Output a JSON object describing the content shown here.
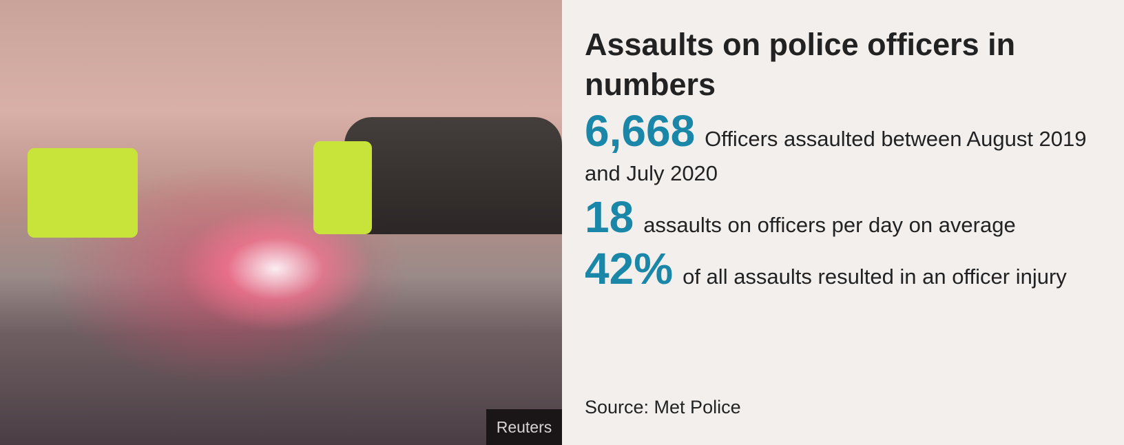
{
  "photo": {
    "credit": "Reuters"
  },
  "panel": {
    "title": "Assaults on police officers in numbers",
    "stats": [
      {
        "value": "6,668",
        "text": "Officers assaulted between August 2019 and July 2020"
      },
      {
        "value": "18",
        "text": "assaults on officers per day on average"
      },
      {
        "value": "42%",
        "text": "of all assaults resulted in an officer injury"
      }
    ],
    "source": "Source: Met Police"
  },
  "colors": {
    "accent": "#1a86a8",
    "background": "#f2efed",
    "text": "#222222"
  }
}
